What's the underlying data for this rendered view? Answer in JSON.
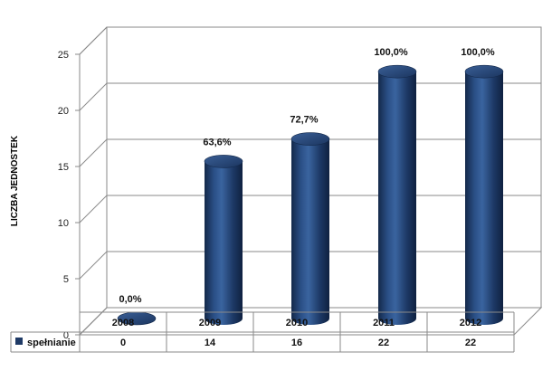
{
  "chart_data": {
    "type": "bar",
    "title": "",
    "ylabel": "LICZBA JEDNOSTEK",
    "xlabel": "",
    "ylim": [
      0,
      25
    ],
    "yticks": [
      "0",
      "5",
      "10",
      "15",
      "20",
      "25"
    ],
    "categories": [
      "2008",
      "2009",
      "2010",
      "2011",
      "2012"
    ],
    "series": [
      {
        "name": "spełnianie",
        "values": [
          0,
          14,
          16,
          22,
          22
        ],
        "value_labels": [
          "0",
          "14",
          "16",
          "22",
          "22"
        ],
        "data_labels": [
          "0,0%",
          "63,6%",
          "72,7%",
          "100,0%",
          "100,0%"
        ],
        "color": "#1f3a66"
      }
    ],
    "grid": true,
    "style": "3d-cylinder",
    "legend": "data-table-left"
  }
}
